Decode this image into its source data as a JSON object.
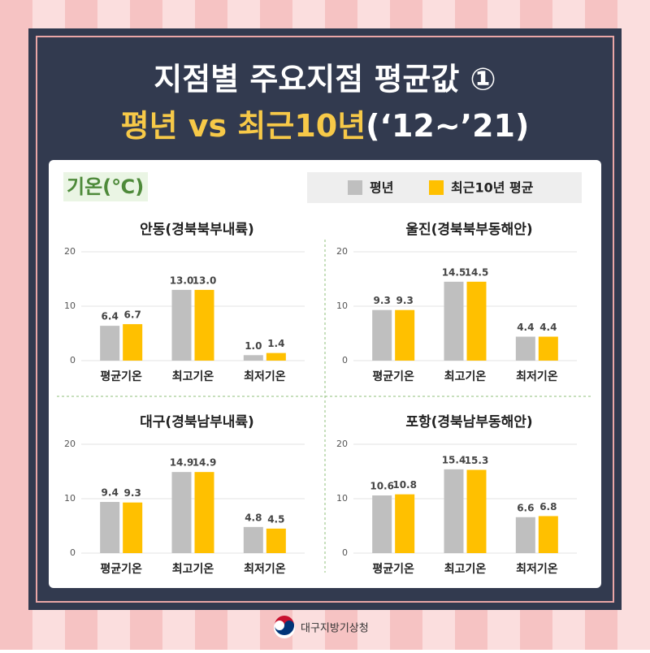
{
  "header": {
    "title_line1": "지점별 주요지점 평균값 ①",
    "title_line2_main": "평년 vs 최근10년",
    "title_line2_period": "(‘12~’21)"
  },
  "unit_label": "기온(℃)",
  "footer": "대구지방기상청",
  "chart_data": [
    {
      "type": "bar",
      "title": "안동(경북북부내륙)",
      "categories": [
        "평균기온",
        "최고기온",
        "최저기온"
      ],
      "series": [
        {
          "name": "평년",
          "color": "#bfbfbf",
          "values": [
            6.4,
            13.0,
            1.0
          ],
          "value_labels": [
            "6.4",
            "13.0",
            "1.0"
          ]
        },
        {
          "name": "최근10년 평균",
          "color": "#ffc000",
          "values": [
            6.7,
            13.0,
            1.4
          ],
          "value_labels": [
            "6.7",
            "13.0",
            "1.4"
          ]
        }
      ],
      "ylim": [
        0,
        20
      ],
      "yticks": [
        0,
        10,
        20
      ],
      "grid": true
    },
    {
      "type": "bar",
      "title": "울진(경북북부동해안)",
      "categories": [
        "평균기온",
        "최고기온",
        "최저기온"
      ],
      "series": [
        {
          "name": "평년",
          "color": "#bfbfbf",
          "values": [
            9.3,
            14.5,
            4.4
          ],
          "value_labels": [
            "9.3",
            "14.5",
            "4.4"
          ]
        },
        {
          "name": "최근10년 평균",
          "color": "#ffc000",
          "values": [
            9.3,
            14.5,
            4.4
          ],
          "value_labels": [
            "9.3",
            "14.5",
            "4.4"
          ]
        }
      ],
      "ylim": [
        0,
        20
      ],
      "yticks": [
        0,
        10,
        20
      ],
      "grid": true
    },
    {
      "type": "bar",
      "title": "대구(경북남부내륙)",
      "categories": [
        "평균기온",
        "최고기온",
        "최저기온"
      ],
      "series": [
        {
          "name": "평년",
          "color": "#bfbfbf",
          "values": [
            9.4,
            14.9,
            4.8
          ],
          "value_labels": [
            "9.4",
            "14.9",
            "4.8"
          ]
        },
        {
          "name": "최근10년 평균",
          "color": "#ffc000",
          "values": [
            9.3,
            14.9,
            4.5
          ],
          "value_labels": [
            "9.3",
            "14.9",
            "4.5"
          ]
        }
      ],
      "ylim": [
        0,
        20
      ],
      "yticks": [
        0,
        10,
        20
      ],
      "grid": true
    },
    {
      "type": "bar",
      "title": "포항(경북남부동해안)",
      "categories": [
        "평균기온",
        "최고기온",
        "최저기온"
      ],
      "series": [
        {
          "name": "평년",
          "color": "#bfbfbf",
          "values": [
            10.6,
            15.4,
            6.6
          ],
          "value_labels": [
            "10.6",
            "15.4",
            "6.6"
          ]
        },
        {
          "name": "최근10년 평균",
          "color": "#ffc000",
          "values": [
            10.8,
            15.3,
            6.8
          ],
          "value_labels": [
            "10.8",
            "15.3",
            "6.8"
          ]
        }
      ],
      "ylim": [
        0,
        20
      ],
      "yticks": [
        0,
        10,
        20
      ],
      "grid": true
    }
  ]
}
